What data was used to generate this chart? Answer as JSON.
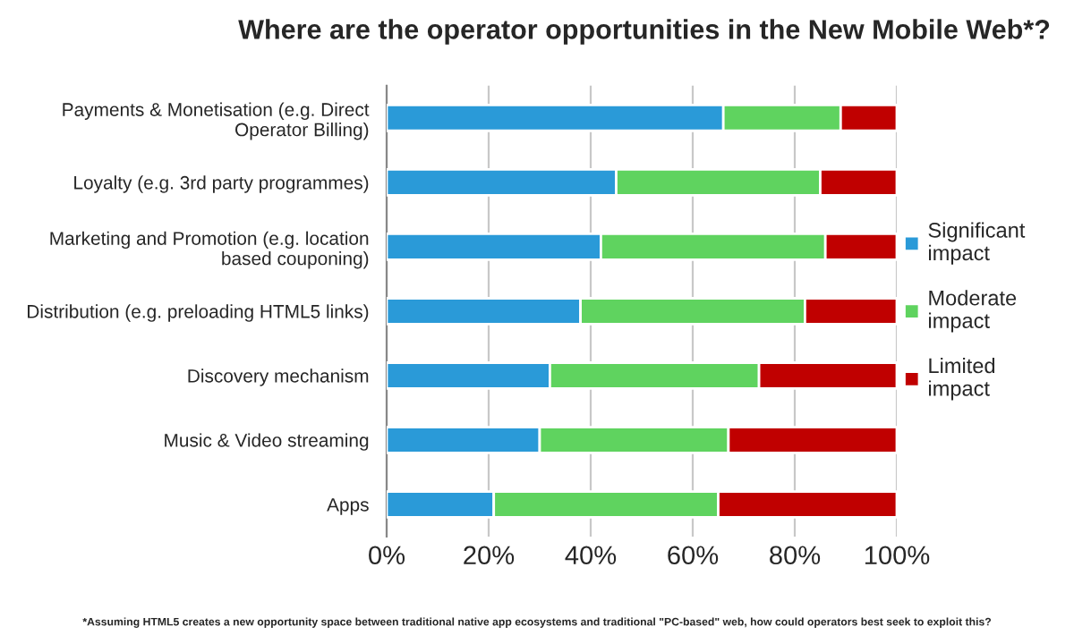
{
  "chart_data": {
    "type": "bar",
    "orientation": "horizontal",
    "stacked": true,
    "title": "Where are the operator opportunities in the New Mobile Web*?",
    "categories": [
      "Payments & Monetisation (e.g. Direct Operator Billing)",
      "Loyalty (e.g. 3rd party programmes)",
      "Marketing and Promotion (e.g. location based couponing)",
      "Distribution (e.g. preloading HTML5 links)",
      "Discovery mechanism",
      "Music & Video streaming",
      "Apps"
    ],
    "series": [
      {
        "name": "Significant impact",
        "color": "#2a9ad8",
        "values": [
          66,
          45,
          42,
          38,
          32,
          30,
          21
        ]
      },
      {
        "name": "Moderate impact",
        "color": "#5fd35f",
        "values": [
          23,
          40,
          44,
          44,
          41,
          37,
          44
        ]
      },
      {
        "name": "Limited impact",
        "color": "#c00000",
        "values": [
          11,
          15,
          14,
          18,
          27,
          33,
          35
        ]
      }
    ],
    "xlim": [
      0,
      100
    ],
    "xticks": [
      {
        "value": 0,
        "label": "0%"
      },
      {
        "value": 20,
        "label": "20%"
      },
      {
        "value": 40,
        "label": "40%"
      },
      {
        "value": 60,
        "label": "60%"
      },
      {
        "value": 80,
        "label": "80%"
      },
      {
        "value": 100,
        "label": "100%"
      }
    ],
    "grid": "x",
    "legend": "right",
    "annotations": [
      "*Assuming HTML5 creates a new opportunity space between traditional native app ecosystems and traditional \"PC-based\" web, how could operators best seek to exploit this?"
    ]
  }
}
